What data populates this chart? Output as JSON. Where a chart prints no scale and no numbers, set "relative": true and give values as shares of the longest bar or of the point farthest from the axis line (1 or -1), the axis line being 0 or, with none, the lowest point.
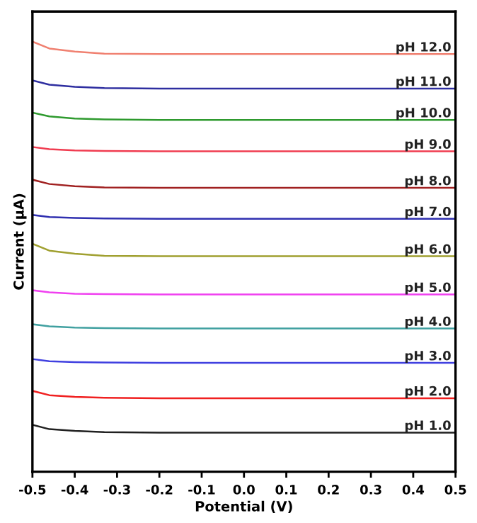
{
  "chart_data": {
    "type": "line",
    "xlabel": "Potential (V)",
    "ylabel": "Current (μA)",
    "relative": true,
    "tick_labels": "x",
    "grid": false,
    "legend": false,
    "marker": "none",
    "line_style": "solid",
    "xlim": [
      -0.5,
      0.5
    ],
    "xticks": [
      -0.5,
      -0.4,
      -0.3,
      -0.2,
      -0.1,
      {
        "value": 0,
        "label": "0.0"
      },
      0.1,
      0.2,
      0.3,
      0.4,
      0.5
    ],
    "x": [
      -0.5,
      -0.46,
      -0.4,
      -0.33,
      -0.2,
      0.0,
      0.5
    ],
    "series": [
      {
        "name": "pH 12.0",
        "color": "#f08070",
        "values": [
          1.0,
          0.984,
          0.977,
          0.972,
          0.971,
          0.971,
          0.971
        ]
      },
      {
        "name": "pH 11.0",
        "color": "#2e2ea0",
        "values": [
          0.91,
          0.9,
          0.895,
          0.892,
          0.891,
          0.891,
          0.891
        ]
      },
      {
        "name": "pH 10.0",
        "color": "#2e9a2e",
        "values": [
          0.835,
          0.826,
          0.821,
          0.819,
          0.818,
          0.818,
          0.818
        ]
      },
      {
        "name": "pH 9.0",
        "color": "#f03c50",
        "values": [
          0.755,
          0.75,
          0.747,
          0.746,
          0.745,
          0.745,
          0.745
        ]
      },
      {
        "name": "pH 8.0",
        "color": "#a02020",
        "values": [
          0.679,
          0.669,
          0.664,
          0.661,
          0.66,
          0.66,
          0.66
        ]
      },
      {
        "name": "pH 7.0",
        "color": "#3030b0",
        "values": [
          0.597,
          0.592,
          0.59,
          0.589,
          0.588,
          0.588,
          0.588
        ]
      },
      {
        "name": "pH 6.0",
        "color": "#a0a030",
        "values": [
          0.53,
          0.514,
          0.507,
          0.502,
          0.501,
          0.501,
          0.501
        ]
      },
      {
        "name": "pH 5.0",
        "color": "#f040f0",
        "values": [
          0.422,
          0.417,
          0.414,
          0.413,
          0.412,
          0.412,
          0.412
        ]
      },
      {
        "name": "pH 4.0",
        "color": "#40a0a0",
        "values": [
          0.343,
          0.338,
          0.335,
          0.334,
          0.333,
          0.333,
          0.333
        ]
      },
      {
        "name": "pH 3.0",
        "color": "#4040e0",
        "values": [
          0.262,
          0.257,
          0.255,
          0.254,
          0.253,
          0.253,
          0.253
        ]
      },
      {
        "name": "pH 2.0",
        "color": "#f02020",
        "values": [
          0.188,
          0.178,
          0.174,
          0.172,
          0.171,
          0.171,
          0.171
        ]
      },
      {
        "name": "pH 1.0",
        "color": "#202020",
        "values": [
          0.109,
          0.099,
          0.095,
          0.092,
          0.091,
          0.091,
          0.091
        ]
      }
    ]
  }
}
